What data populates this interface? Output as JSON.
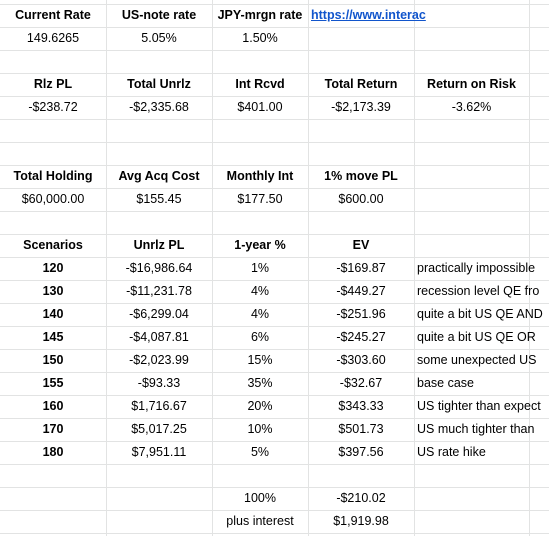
{
  "rows": [
    {
      "row": 0,
      "cells": [
        "Current Rate",
        "US-note rate",
        "JPY-mrgn rate",
        "https://www.interac",
        "",
        ""
      ],
      "bold": true
    },
    {
      "row": 1,
      "cells": [
        "149.6265",
        "5.05%",
        "1.50%",
        "",
        "",
        ""
      ]
    },
    {
      "row": 2,
      "cells": [
        "",
        "",
        "",
        "",
        "",
        ""
      ]
    },
    {
      "row": 3,
      "cells": [
        "Rlz PL",
        "Total Unrlz",
        "Int Rcvd",
        "Total Return",
        "Return on Risk",
        ""
      ],
      "bold": true
    },
    {
      "row": 4,
      "cells": [
        "-$238.72",
        "-$2,335.68",
        "$401.00",
        "-$2,173.39",
        "-3.62%",
        ""
      ]
    },
    {
      "row": 5,
      "cells": [
        "",
        "",
        "",
        "",
        "",
        ""
      ]
    },
    {
      "row": 6,
      "cells": [
        "",
        "",
        "",
        "",
        "",
        ""
      ]
    },
    {
      "row": 7,
      "cells": [
        "Total Holding",
        "Avg Acq Cost",
        "Monthly Int",
        "1% move PL",
        "",
        ""
      ],
      "bold": true
    },
    {
      "row": 8,
      "cells": [
        "$60,000.00",
        "$155.45",
        "$177.50",
        "$600.00",
        "",
        ""
      ]
    },
    {
      "row": 9,
      "cells": [
        "",
        "",
        "",
        "",
        "",
        ""
      ]
    },
    {
      "row": 10,
      "cells": [
        "Scenarios",
        "Unrlz PL",
        "1-year %",
        "EV",
        "",
        ""
      ],
      "bold": true
    },
    {
      "row": 11,
      "cells": [
        "120",
        "-$16,986.64",
        "1%",
        "-$169.87",
        "practically impossible",
        ""
      ]
    },
    {
      "row": 12,
      "cells": [
        "130",
        "-$11,231.78",
        "4%",
        "-$449.27",
        "recession level QE fro",
        ""
      ]
    },
    {
      "row": 13,
      "cells": [
        "140",
        "-$6,299.04",
        "4%",
        "-$251.96",
        "quite a bit US QE AND",
        ""
      ]
    },
    {
      "row": 14,
      "cells": [
        "145",
        "-$4,087.81",
        "6%",
        "-$245.27",
        "quite a bit US QE OR",
        ""
      ]
    },
    {
      "row": 15,
      "cells": [
        "150",
        "-$2,023.99",
        "15%",
        "-$303.60",
        "some unexpected US",
        ""
      ]
    },
    {
      "row": 16,
      "cells": [
        "155",
        "-$93.33",
        "35%",
        "-$32.67",
        "base case",
        ""
      ]
    },
    {
      "row": 17,
      "cells": [
        "160",
        "$1,716.67",
        "20%",
        "$343.33",
        "US tighter than expect",
        ""
      ]
    },
    {
      "row": 18,
      "cells": [
        "170",
        "$5,017.25",
        "10%",
        "$501.73",
        "US much tighter than",
        ""
      ]
    },
    {
      "row": 19,
      "cells": [
        "180",
        "$7,951.11",
        "5%",
        "$397.56",
        "US rate hike",
        ""
      ]
    },
    {
      "row": 20,
      "cells": [
        "",
        "",
        "",
        "",
        "",
        ""
      ]
    },
    {
      "row": 21,
      "cells": [
        "",
        "",
        "100%",
        "-$210.02",
        "",
        ""
      ]
    },
    {
      "row": 22,
      "cells": [
        "",
        "",
        "plus interest",
        "$1,919.98",
        "",
        ""
      ]
    }
  ]
}
